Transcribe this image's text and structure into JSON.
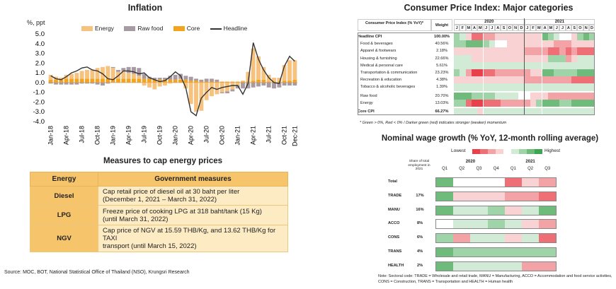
{
  "inflation": {
    "title": "Inflation",
    "unit_label": "%, ppt",
    "legend": [
      "Energy",
      "Raw food",
      "Core",
      "Headline"
    ],
    "colors": {
      "energy": "#f6c27e",
      "raw_food": "#a89aa3",
      "core": "#f4a31c",
      "headline": "#333333"
    }
  },
  "chart_data": [
    {
      "type": "bar",
      "title": "Inflation",
      "ylabel": "%, ppt",
      "ylim": [
        -4.0,
        5.0
      ],
      "yticks": [
        "5.0",
        "4.0",
        "3.0",
        "2.0",
        "1.0",
        "0.0",
        "-1.0",
        "-2.0",
        "-3.0",
        "-4.0"
      ],
      "x_tick_labels": [
        "Jan-18",
        "Apr-18",
        "Jul-18",
        "Oct-18",
        "Jan-19",
        "Apr-19",
        "Jul-19",
        "Oct-19",
        "Jan-20",
        "Apr-20",
        "Jul-20",
        "Oct-20",
        "Jan-21",
        "Apr-21",
        "Jul-21",
        "Oct-21",
        "Dec-21"
      ],
      "series": [
        {
          "name": "Energy",
          "values": [
            0.5,
            0.3,
            0.2,
            0.4,
            0.5,
            0.6,
            0.8,
            0.9,
            0.9,
            1.1,
            1.2,
            1.3,
            1.1,
            0.7,
            0.8,
            0.6,
            0.5,
            0.3,
            -0.3,
            -0.5,
            -0.7,
            -0.4,
            -0.3,
            -0.1,
            0.0,
            0.1,
            -0.6,
            -2.2,
            -3.0,
            -2.9,
            -1.8,
            -1.4,
            -1.2,
            -1.0,
            -0.9,
            -0.7,
            -0.3,
            0.1,
            1.0,
            3.3,
            2.4,
            1.3,
            0.7,
            0.4,
            0.4,
            1.6,
            2.1,
            2.0
          ]
        },
        {
          "name": "Raw food",
          "values": [
            -0.1,
            -0.2,
            -0.2,
            -0.2,
            -0.2,
            -0.2,
            -0.1,
            -0.1,
            -0.1,
            -0.2,
            -0.3,
            -0.1,
            0.1,
            0.2,
            0.3,
            0.6,
            0.7,
            0.8,
            0.5,
            0.2,
            0.2,
            0.2,
            0.2,
            0.4,
            0.5,
            0.5,
            0.4,
            0.4,
            0.2,
            0.2,
            0.3,
            0.3,
            0.2,
            -0.1,
            -0.2,
            -0.2,
            -0.3,
            -0.6,
            -0.6,
            -0.5,
            -0.4,
            -0.3,
            -0.5,
            -0.6,
            -0.5,
            -0.3,
            -0.3,
            -0.3
          ]
        },
        {
          "name": "Core",
          "values": [
            0.3,
            0.3,
            0.3,
            0.4,
            0.4,
            0.4,
            0.4,
            0.4,
            0.4,
            0.4,
            0.4,
            0.4,
            0.4,
            0.4,
            0.4,
            0.4,
            0.4,
            0.4,
            0.4,
            0.4,
            0.3,
            0.3,
            0.3,
            0.3,
            0.3,
            0.3,
            0.3,
            0.2,
            0.2,
            0.1,
            0.1,
            0.1,
            0.1,
            0.1,
            0.1,
            0.1,
            0.1,
            0.1,
            0.1,
            0.2,
            0.3,
            0.3,
            0.1,
            0.1,
            0.1,
            0.2,
            0.2,
            0.3
          ]
        },
        {
          "name": "Headline",
          "values": [
            0.7,
            0.4,
            0.3,
            0.6,
            1.0,
            1.2,
            1.5,
            1.6,
            1.3,
            1.2,
            0.9,
            0.4,
            0.3,
            0.7,
            1.2,
            1.2,
            1.1,
            0.9,
            1.0,
            0.5,
            0.3,
            0.1,
            0.2,
            0.6,
            1.1,
            0.7,
            -0.5,
            -3.0,
            -3.4,
            -1.6,
            -1.0,
            -0.5,
            -0.7,
            -0.5,
            -0.4,
            -0.3,
            -0.3,
            -1.2,
            -0.1,
            4.1,
            2.4,
            1.3,
            0.5,
            0.0,
            -0.1,
            1.7,
            2.7,
            2.2
          ]
        }
      ]
    },
    {
      "type": "heatmap",
      "title": "Consumer Price Index: Major categories",
      "note": "* Green > 0%, Red < 0% / Darker green (red) indicates stronger (weaker) momentum",
      "header": {
        "col1": "Consumer Price Index (% YoY)*",
        "col2": "Weight",
        "years": [
          "2020",
          "2021"
        ],
        "months": [
          "J",
          "F",
          "M",
          "A",
          "M",
          "J",
          "J",
          "A",
          "S",
          "O",
          "N",
          "D"
        ]
      },
      "rows": [
        {
          "name": "Headline CPI",
          "weight": "100.00%",
          "bold": true,
          "values": [
            2,
            1,
            -1,
            -3,
            -3,
            -2,
            -2,
            -1,
            -1,
            -1,
            -1,
            -1,
            -1,
            -1,
            -1,
            3,
            2,
            1,
            0,
            0,
            -1,
            2,
            3,
            2
          ]
        },
        {
          "name": "Food & beverages",
          "weight": "40.56%",
          "values": [
            2,
            2,
            3,
            3,
            3,
            2,
            1,
            0,
            0,
            -1,
            -1,
            -1,
            -1,
            -1,
            -1,
            -1,
            -1,
            -2,
            -2,
            -2,
            -1,
            -1,
            -1,
            -1
          ]
        },
        {
          "name": "Apparel & footwears",
          "weight": "2.18%",
          "values": [
            -1,
            -1,
            -1,
            -1,
            -1,
            -1,
            -1,
            -1,
            -1,
            -1,
            -1,
            -1,
            -2,
            -2,
            -2,
            -2,
            -3,
            -3,
            -2,
            -3,
            -2,
            -3,
            -3,
            -3
          ]
        },
        {
          "name": "Housing & furnishing",
          "weight": "22.66%",
          "values": [
            1,
            1,
            1,
            -1,
            -1,
            -1,
            -1,
            -1,
            -1,
            -1,
            -1,
            -1,
            -1,
            -1,
            -1,
            -1,
            2,
            2,
            2,
            -2,
            -1,
            1,
            1,
            1
          ]
        },
        {
          "name": "Medical & personal care",
          "weight": "5.61%",
          "values": [
            1,
            1,
            1,
            1,
            1,
            1,
            1,
            1,
            1,
            1,
            1,
            1,
            1,
            1,
            1,
            1,
            1,
            1,
            1,
            1,
            1,
            1,
            1,
            1
          ]
        },
        {
          "name": "Transportation & communication",
          "weight": "23.23%",
          "values": [
            2,
            1,
            -2,
            -4,
            -4,
            -3,
            -3,
            -2,
            -2,
            -2,
            -2,
            -2,
            -2,
            -1,
            -1,
            3,
            3,
            2,
            2,
            2,
            2,
            3,
            3,
            3
          ]
        },
        {
          "name": "Recreation & education",
          "weight": "4.38%",
          "values": [
            -1,
            -1,
            -1,
            -1,
            -1,
            -1,
            -1,
            -1,
            -1,
            -1,
            -1,
            -1,
            -2,
            -2,
            -2,
            -2,
            -2,
            -2,
            -2,
            -2,
            -3,
            -3,
            -3,
            -3
          ]
        },
        {
          "name": "Tobacco & alcoholic beverages",
          "weight": "1.39%",
          "values": [
            1,
            1,
            1,
            1,
            1,
            1,
            1,
            1,
            1,
            1,
            1,
            1,
            1,
            1,
            1,
            1,
            1,
            1,
            1,
            1,
            1,
            1,
            1,
            1
          ]
        },
        {
          "name": "Raw food",
          "weight": "20.70%",
          "gap": true,
          "values": [
            3,
            3,
            3,
            2,
            2,
            2,
            2,
            1,
            1,
            1,
            1,
            0,
            0,
            -1,
            -1,
            -1,
            -2,
            -2,
            -2,
            -2,
            -2,
            -2,
            -2,
            -2
          ]
        },
        {
          "name": "Energy",
          "weight": "13.03%",
          "values": [
            2,
            2,
            -3,
            -4,
            -4,
            -3,
            -3,
            -3,
            -2,
            -2,
            -2,
            -2,
            -2,
            -1,
            2,
            3,
            3,
            3,
            2,
            2,
            3,
            3,
            3,
            3
          ]
        },
        {
          "name": "Core CPI",
          "weight": "66.27%",
          "bold": true,
          "gap": true,
          "values": [
            1,
            1,
            1,
            1,
            -1,
            1,
            1,
            1,
            1,
            1,
            1,
            1,
            1,
            1,
            1,
            1,
            1,
            1,
            1,
            1,
            1,
            1,
            1,
            1
          ]
        }
      ]
    },
    {
      "type": "heatmap",
      "title": "Nominal wage growth (% YoY, 12-month rolling average)",
      "scale": {
        "low": "Lowest",
        "high": "Highest"
      },
      "share_header": "Share of total employment in 2021",
      "years": [
        "2020",
        "2021"
      ],
      "quarters": [
        "Q1",
        "Q2",
        "Q3",
        "Q4",
        "Q1",
        "Q2",
        "Q3"
      ],
      "rows": [
        {
          "name": "Total",
          "share": "",
          "values": [
            3,
            0,
            0,
            0,
            -3,
            -1,
            -2
          ]
        },
        {
          "name": "TRADE",
          "share": "17%",
          "values": [
            3,
            -1,
            -1,
            -1,
            -2,
            -2,
            -3
          ]
        },
        {
          "name": "MANU",
          "share": "16%",
          "values": [
            3,
            1,
            1,
            2,
            -1,
            1,
            3
          ]
        },
        {
          "name": "ACCO",
          "share": "8%",
          "values": [
            0,
            1,
            1,
            2,
            1,
            -1,
            -2
          ]
        },
        {
          "name": "CONS",
          "share": "6%",
          "values": [
            2,
            -2,
            1,
            1,
            -1,
            1,
            -3
          ]
        },
        {
          "name": "TRANS",
          "share": "4%",
          "values": [
            3,
            2,
            2,
            2,
            2,
            2,
            2
          ]
        },
        {
          "name": "HEALTH",
          "share": "2%",
          "values": [
            3,
            1,
            1,
            1,
            1,
            -2,
            -2
          ]
        }
      ],
      "note": "Note: Sectoral code: TRADE = Wholesale and retail trade, MANU = Manufacturing, ACCO = Accommodation and food service activities, CONS = Construction, TRANS = Transportation and HEALTH = Human health"
    }
  ],
  "measures": {
    "title": "Measures to cap energy prices",
    "col_energy": "Energy",
    "col_measures": "Government measures",
    "rows": [
      {
        "energy": "Diesel",
        "line1": "Cap retail price of diesel oil at 30 baht per liter",
        "line2": "(December 1, 2021 – March 31, 2022)"
      },
      {
        "energy": "LPG",
        "line1": "Freeze price of cooking LPG at 318 baht/tank (15 Kg)",
        "line2": "(until March 31, 2022)"
      },
      {
        "energy": "NGV",
        "line1": "Cap price of NGV at 15.59 THB/Kg, and 13.62 THB/Kg for TAXI",
        "line2": "transport (until March 15, 2022)"
      }
    ]
  },
  "source": "Source: MOC, BOT, National Statistical Office of Thailand (NSO), Krungsri Research",
  "heat_colors": {
    "-4": "#e8414b",
    "-3": "#ee6f76",
    "-2": "#f3a3a6",
    "-1": "#f9d3d4",
    "0": "#ffffff",
    "1": "#d2ebd6",
    "2": "#9fd3a8",
    "3": "#6fbb7c",
    "4": "#3ea653"
  }
}
